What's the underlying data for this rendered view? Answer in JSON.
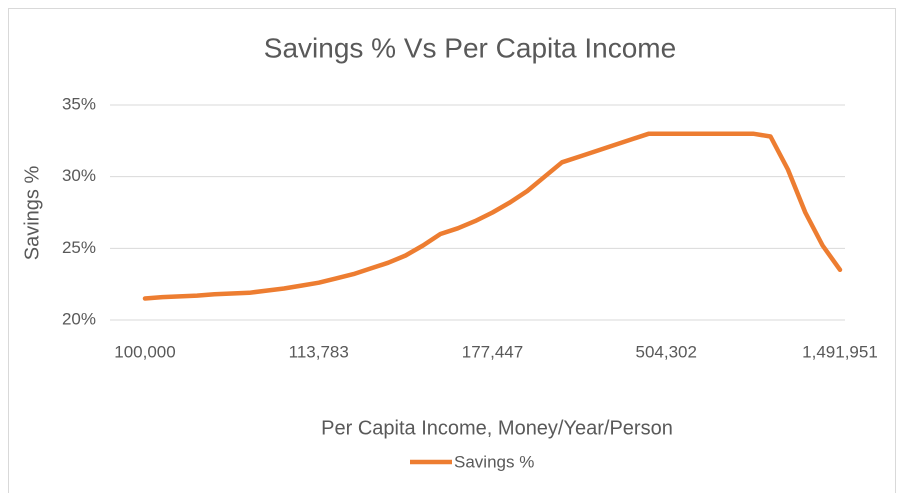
{
  "chart_data": {
    "type": "line",
    "title": "Savings % Vs Per Capita Income",
    "x_label": "Per Capita Income, Money/Year/Person",
    "y_label": "Savings %",
    "categories": [
      "100,000",
      null,
      null,
      null,
      null,
      null,
      null,
      null,
      null,
      null,
      "113,783",
      null,
      null,
      null,
      null,
      null,
      null,
      null,
      null,
      null,
      "177,447",
      null,
      null,
      null,
      null,
      null,
      null,
      null,
      null,
      null,
      "504,302",
      null,
      null,
      null,
      null,
      null,
      null,
      null,
      null,
      null,
      "1,491,951"
    ],
    "series": [
      {
        "name": "Savings %",
        "color": "#ed7d31",
        "values": [
          21.5,
          21.6,
          21.65,
          21.7,
          21.8,
          21.85,
          21.9,
          22.05,
          22.2,
          22.4,
          22.6,
          22.9,
          23.2,
          23.6,
          24.0,
          24.5,
          25.2,
          26.0,
          26.4,
          26.9,
          27.5,
          28.2,
          29.0,
          30.0,
          31.0,
          31.4,
          31.8,
          32.2,
          32.6,
          33.0,
          33,
          33,
          33,
          33,
          33,
          33,
          32.8,
          30.5,
          27.5,
          25.2,
          23.5
        ]
      }
    ],
    "ylim": [
      20,
      35
    ],
    "yticks": [
      {
        "value": 20,
        "label": "20%"
      },
      {
        "value": 25,
        "label": "25%"
      },
      {
        "value": 30,
        "label": "30%"
      },
      {
        "value": 35,
        "label": "35%"
      }
    ],
    "grid": true,
    "legend": "bottom"
  }
}
